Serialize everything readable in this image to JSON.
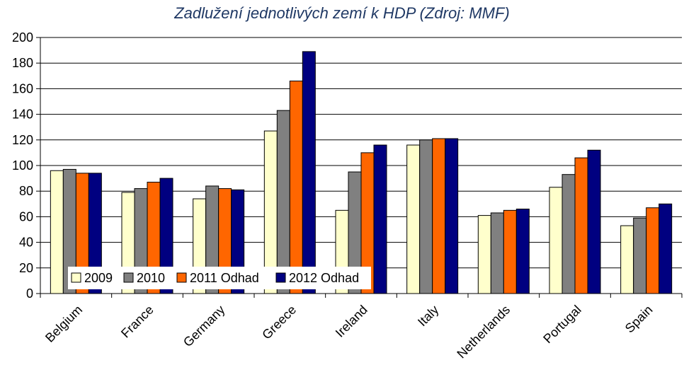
{
  "chart_data": {
    "type": "bar",
    "title": "Zadlužení jednotlivých zemí k HDP (Zdroj: MMF)",
    "xlabel": "",
    "ylabel": "",
    "ylim": [
      0,
      200
    ],
    "yticks": [
      0,
      20,
      40,
      60,
      80,
      100,
      120,
      140,
      160,
      180,
      200
    ],
    "grid": true,
    "legend_position": "bottom-left (inside plot)",
    "categories": [
      "Belgium",
      "France",
      "Germany",
      "Greece",
      "Ireland",
      "Italy",
      "Netherlands",
      "Portugal",
      "Spain"
    ],
    "series": [
      {
        "name": "2009",
        "color": "#ffffcc",
        "values": [
          96,
          79,
          74,
          127,
          65,
          116,
          61,
          83,
          53
        ]
      },
      {
        "name": "2010",
        "color": "#808080",
        "values": [
          97,
          82,
          84,
          143,
          95,
          120,
          63,
          93,
          59
        ]
      },
      {
        "name": "2011 Odhad",
        "color": "#ff6600",
        "values": [
          94,
          87,
          82,
          166,
          110,
          121,
          65,
          106,
          67
        ]
      },
      {
        "name": "2012 Odhad",
        "color": "#000080",
        "values": [
          94,
          90,
          81,
          189,
          116,
          121,
          66,
          112,
          70
        ]
      }
    ]
  }
}
